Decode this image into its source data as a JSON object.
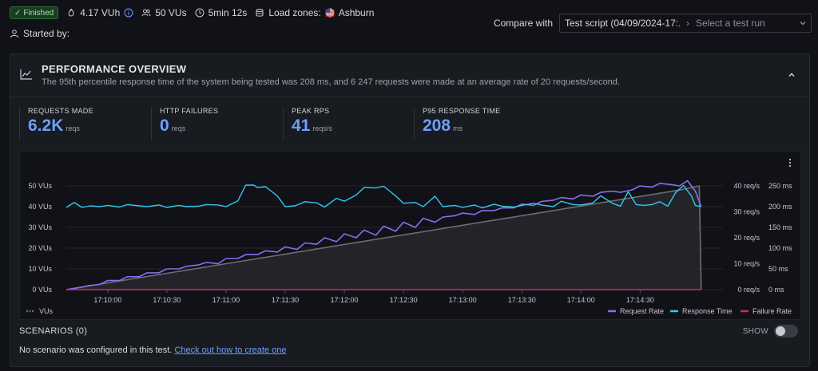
{
  "top": {
    "status": "Finished",
    "vuh": "4.17 VUh",
    "vus": "50 VUs",
    "duration": "5min 12s",
    "load_zones_label": "Load zones:",
    "load_zone": "Ashburn",
    "started_by": "Started by:"
  },
  "compare": {
    "label": "Compare with",
    "selected": "Test script (04/09/2024-17:...",
    "placeholder": "Select a test run"
  },
  "panel": {
    "title": "PERFORMANCE OVERVIEW",
    "description": "The 95th percentile response time of the system being tested was 208 ms, and 6 247 requests were made at an average rate of 20 requests/second."
  },
  "stats": [
    {
      "label": "REQUESTS MADE",
      "value": "6.2K",
      "unit": "reqs"
    },
    {
      "label": "HTTP FAILURES",
      "value": "0",
      "unit": "reqs"
    },
    {
      "label": "PEAK RPS",
      "value": "41",
      "unit": "reqs/s"
    },
    {
      "label": "P95 RESPONSE TIME",
      "value": "208",
      "unit": "ms"
    }
  ],
  "chart_data": {
    "type": "line",
    "x_ticks": [
      "17:10:00",
      "17:10:30",
      "17:11:00",
      "17:11:30",
      "17:12:00",
      "17:12:30",
      "17:13:00",
      "17:13:30",
      "17:14:00",
      "17:14:30"
    ],
    "y_left_ticks": [
      "0 VUs",
      "10 VUs",
      "20 VUs",
      "30 VUs",
      "40 VUs",
      "50 VUs"
    ],
    "y_left_range": [
      0,
      50
    ],
    "y_mid_ticks": [
      "0 req/s",
      "10 req/s",
      "20 req/s",
      "30 req/s",
      "40 req/s"
    ],
    "y_mid_range": [
      0,
      40
    ],
    "y_right_ticks": [
      "0 ms",
      "50 ms",
      "100 ms",
      "150 ms",
      "200 ms",
      "250 ms"
    ],
    "y_right_range": [
      0,
      250
    ],
    "x_range_seconds": [
      -21,
      312
    ],
    "series": [
      {
        "name": "VUs",
        "color": "#6b6c75",
        "axis": "left",
        "x_seconds": [
          -21,
          290,
          300,
          301
        ],
        "values": [
          0,
          48,
          50,
          0
        ]
      },
      {
        "name": "Request Rate",
        "color": "#8c6cf0",
        "axis": "mid",
        "x_seconds": [
          -21,
          -13,
          -10,
          -4,
          0,
          6,
          10,
          16,
          20,
          26,
          30,
          36,
          40,
          46,
          50,
          56,
          60,
          66,
          70,
          76,
          80,
          86,
          90,
          96,
          100,
          106,
          110,
          116,
          120,
          126,
          130,
          136,
          140,
          146,
          150,
          156,
          160,
          166,
          170,
          176,
          180,
          186,
          190,
          196,
          200,
          206,
          210,
          216,
          220,
          226,
          230,
          236,
          240,
          246,
          250,
          256,
          260,
          266,
          270,
          276,
          280,
          286,
          290,
          294,
          298,
          301
        ],
        "values": [
          0,
          1,
          1.5,
          2,
          3.5,
          3.5,
          5,
          5,
          6.5,
          6.5,
          8,
          8,
          9,
          9.5,
          10.5,
          10,
          12,
          12,
          13.5,
          13.5,
          15,
          14.5,
          16.5,
          15.5,
          18,
          17.5,
          20,
          18.5,
          21.5,
          20,
          23,
          21,
          24.5,
          22.5,
          26,
          24,
          27.5,
          26,
          28,
          28.5,
          29.5,
          29,
          30.5,
          30.5,
          31.5,
          31.5,
          33,
          32.5,
          34,
          34.5,
          35.5,
          35,
          36.5,
          36,
          37.5,
          38,
          37.5,
          38.5,
          40,
          39.5,
          41,
          40.5,
          40,
          42,
          38,
          32
        ]
      },
      {
        "name": "Response Time",
        "color": "#35c8f0",
        "axis": "right",
        "x_seconds": [
          -21,
          -17,
          -13,
          -9,
          -4,
          0,
          6,
          10,
          16,
          20,
          26,
          30,
          36,
          40,
          46,
          50,
          56,
          60,
          66,
          70,
          74,
          76,
          80,
          86,
          90,
          95,
          100,
          106,
          110,
          116,
          120,
          126,
          130,
          136,
          140,
          146,
          150,
          156,
          160,
          166,
          170,
          176,
          180,
          186,
          190,
          196,
          200,
          206,
          210,
          216,
          220,
          226,
          230,
          236,
          240,
          246,
          250,
          256,
          260,
          264,
          268,
          272,
          276,
          280,
          284,
          288,
          292,
          296,
          298,
          301
        ],
        "values": [
          198,
          210,
          198,
          202,
          200,
          203,
          199,
          205,
          202,
          200,
          204,
          198,
          203,
          200,
          201,
          205,
          204,
          200,
          214,
          252,
          252,
          246,
          248,
          226,
          200,
          202,
          212,
          209,
          199,
          220,
          213,
          228,
          246,
          245,
          249,
          226,
          208,
          210,
          200,
          225,
          200,
          203,
          198,
          204,
          197,
          206,
          201,
          199,
          203,
          208,
          204,
          200,
          213,
          205,
          204,
          209,
          226,
          208,
          201,
          236,
          205,
          203,
          205,
          212,
          201,
          234,
          251,
          226,
          203,
          200
        ]
      },
      {
        "name": "Failure Rate",
        "color": "#e0226e",
        "axis": "mid",
        "x_seconds": [
          -21,
          301
        ],
        "values": [
          0,
          0
        ]
      }
    ],
    "legend_left": "VUs",
    "legend_right": [
      "Request Rate",
      "Response Time",
      "Failure Rate"
    ]
  },
  "scenarios": {
    "title": "SCENARIOS (0)",
    "show_label": "SHOW",
    "message": "No scenario was configured in this test.",
    "link": "Check out how to create one"
  }
}
